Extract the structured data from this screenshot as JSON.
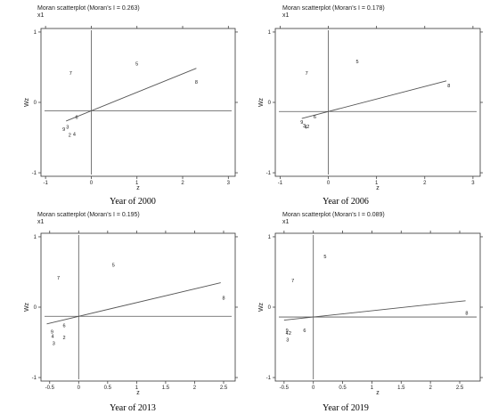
{
  "panels": [
    {
      "title": "Moran scatterplot (Moran's I = 0.263)",
      "sublabel": "x1",
      "year_label": "Year of 2000",
      "xlabel": "z",
      "ylabel": "Wz",
      "xlim": [
        -1.1,
        3.15
      ],
      "ylim": [
        -1.05,
        1.05
      ],
      "xticks": [
        -1,
        0,
        1,
        2,
        3
      ],
      "yticks": [
        -1,
        0,
        1
      ],
      "slope": 0.263,
      "intercept": -0.12,
      "fit_x": [
        -0.55,
        2.3
      ],
      "points": [
        {
          "label": "7",
          "x": -0.45,
          "y": 0.42
        },
        {
          "label": "5",
          "x": 1.0,
          "y": 0.55
        },
        {
          "label": "8",
          "x": 2.3,
          "y": 0.29
        },
        {
          "label": "6",
          "x": -0.32,
          "y": -0.21
        },
        {
          "label": "9",
          "x": -0.6,
          "y": -0.38
        },
        {
          "label": "3",
          "x": -0.52,
          "y": -0.35
        },
        {
          "label": "2",
          "x": -0.47,
          "y": -0.46
        },
        {
          "label": "4",
          "x": -0.37,
          "y": -0.45
        }
      ]
    },
    {
      "title": "Moran scatterplot (Moran's I = 0.178)",
      "sublabel": "x1",
      "year_label": "Year of 2006",
      "xlabel": "z",
      "ylabel": "Wz",
      "xlim": [
        -1.1,
        3.15
      ],
      "ylim": [
        -1.05,
        1.05
      ],
      "xticks": [
        -1,
        0,
        1,
        2,
        3
      ],
      "yticks": [
        -1,
        0,
        1
      ],
      "slope": 0.178,
      "intercept": -0.13,
      "fit_x": [
        -0.55,
        2.45
      ],
      "points": [
        {
          "label": "7",
          "x": -0.45,
          "y": 0.42
        },
        {
          "label": "5",
          "x": 0.6,
          "y": 0.58
        },
        {
          "label": "8",
          "x": 2.5,
          "y": 0.24
        },
        {
          "label": "6",
          "x": -0.28,
          "y": -0.2
        },
        {
          "label": "9",
          "x": -0.55,
          "y": -0.28
        },
        {
          "label": "3",
          "x": -0.5,
          "y": -0.33
        },
        {
          "label": "2",
          "x": -0.42,
          "y": -0.34
        },
        {
          "label": "4",
          "x": -0.47,
          "y": -0.35
        }
      ]
    },
    {
      "title": "Moran scatterplot (Moran's I = 0.195)",
      "sublabel": "x1",
      "year_label": "Year of 2013",
      "xlabel": "z",
      "ylabel": "Wz",
      "xlim": [
        -0.65,
        2.7
      ],
      "ylim": [
        -1.05,
        1.05
      ],
      "xticks": [
        -0.5,
        0,
        0.5,
        1,
        1.5,
        2,
        2.5
      ],
      "yticks": [
        -1,
        0,
        1
      ],
      "slope": 0.195,
      "intercept": -0.13,
      "fit_x": [
        -0.55,
        2.45
      ],
      "points": [
        {
          "label": "7",
          "x": -0.35,
          "y": 0.42
        },
        {
          "label": "5",
          "x": 0.6,
          "y": 0.6
        },
        {
          "label": "8",
          "x": 2.5,
          "y": 0.13
        },
        {
          "label": "6",
          "x": -0.25,
          "y": -0.26
        },
        {
          "label": "9",
          "x": -0.46,
          "y": -0.35
        },
        {
          "label": "4",
          "x": -0.45,
          "y": -0.41
        },
        {
          "label": "2",
          "x": -0.25,
          "y": -0.43
        },
        {
          "label": "3",
          "x": -0.43,
          "y": -0.51
        }
      ]
    },
    {
      "title": "Moran scatterplot (Moran's I = 0.089)",
      "sublabel": "x1",
      "year_label": "Year of 2019",
      "xlabel": "z",
      "ylabel": "Wz",
      "xlim": [
        -0.65,
        2.85
      ],
      "ylim": [
        -1.05,
        1.05
      ],
      "xticks": [
        -0.5,
        0,
        0.5,
        1,
        1.5,
        2,
        2.5
      ],
      "yticks": [
        -1,
        0,
        1
      ],
      "slope": 0.089,
      "intercept": -0.14,
      "fit_x": [
        -0.5,
        2.6
      ],
      "points": [
        {
          "label": "5",
          "x": 0.2,
          "y": 0.72
        },
        {
          "label": "7",
          "x": -0.35,
          "y": 0.38
        },
        {
          "label": "8",
          "x": 2.62,
          "y": -0.08
        },
        {
          "label": "6",
          "x": -0.15,
          "y": -0.33
        },
        {
          "label": "9",
          "x": -0.45,
          "y": -0.33
        },
        {
          "label": "4",
          "x": -0.45,
          "y": -0.37
        },
        {
          "label": "2",
          "x": -0.4,
          "y": -0.37
        },
        {
          "label": "3",
          "x": -0.44,
          "y": -0.46
        }
      ]
    }
  ]
}
